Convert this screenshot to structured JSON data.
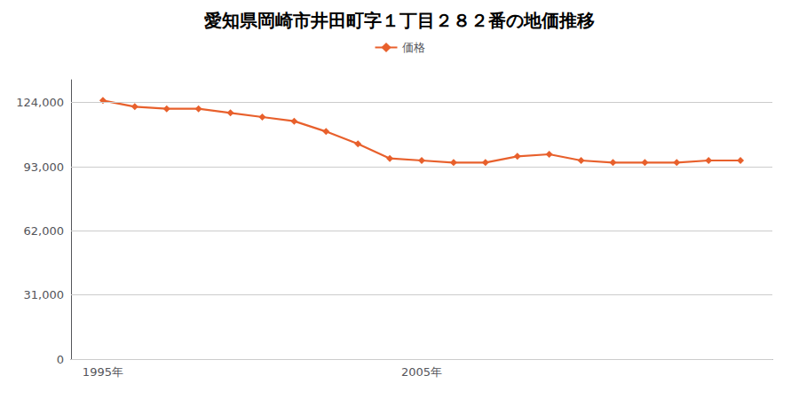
{
  "chart_data": {
    "type": "line",
    "title": "愛知県岡崎市井田町字１丁目２８２番の地価推移",
    "x": [
      1995,
      1996,
      1997,
      1998,
      1999,
      2000,
      2001,
      2002,
      2003,
      2004,
      2005,
      2006,
      2007,
      2008,
      2009,
      2010,
      2011,
      2012,
      2013,
      2014,
      2015
    ],
    "series": [
      {
        "name": "価格",
        "color": "#e8602c",
        "marker": "diamond",
        "values": [
          125000,
          122000,
          121000,
          121000,
          119000,
          117000,
          115000,
          110000,
          104000,
          97000,
          96000,
          95000,
          95000,
          98000,
          99000,
          96000,
          95000,
          95000,
          95000,
          96000,
          96000
        ]
      }
    ],
    "xlim": [
      1994,
      2016
    ],
    "xticks": [
      {
        "value": 1995,
        "label": "1995年"
      },
      {
        "value": 2005,
        "label": "2005年"
      }
    ],
    "ylim": [
      0,
      135000
    ],
    "yticks": [
      0,
      {
        "value": 31000,
        "label": "31,000"
      },
      {
        "value": 62000,
        "label": "62,000"
      },
      {
        "value": 93000,
        "label": "93,000"
      },
      {
        "value": 124000,
        "label": "124,000"
      }
    ],
    "grid": "y",
    "legend": "top"
  }
}
